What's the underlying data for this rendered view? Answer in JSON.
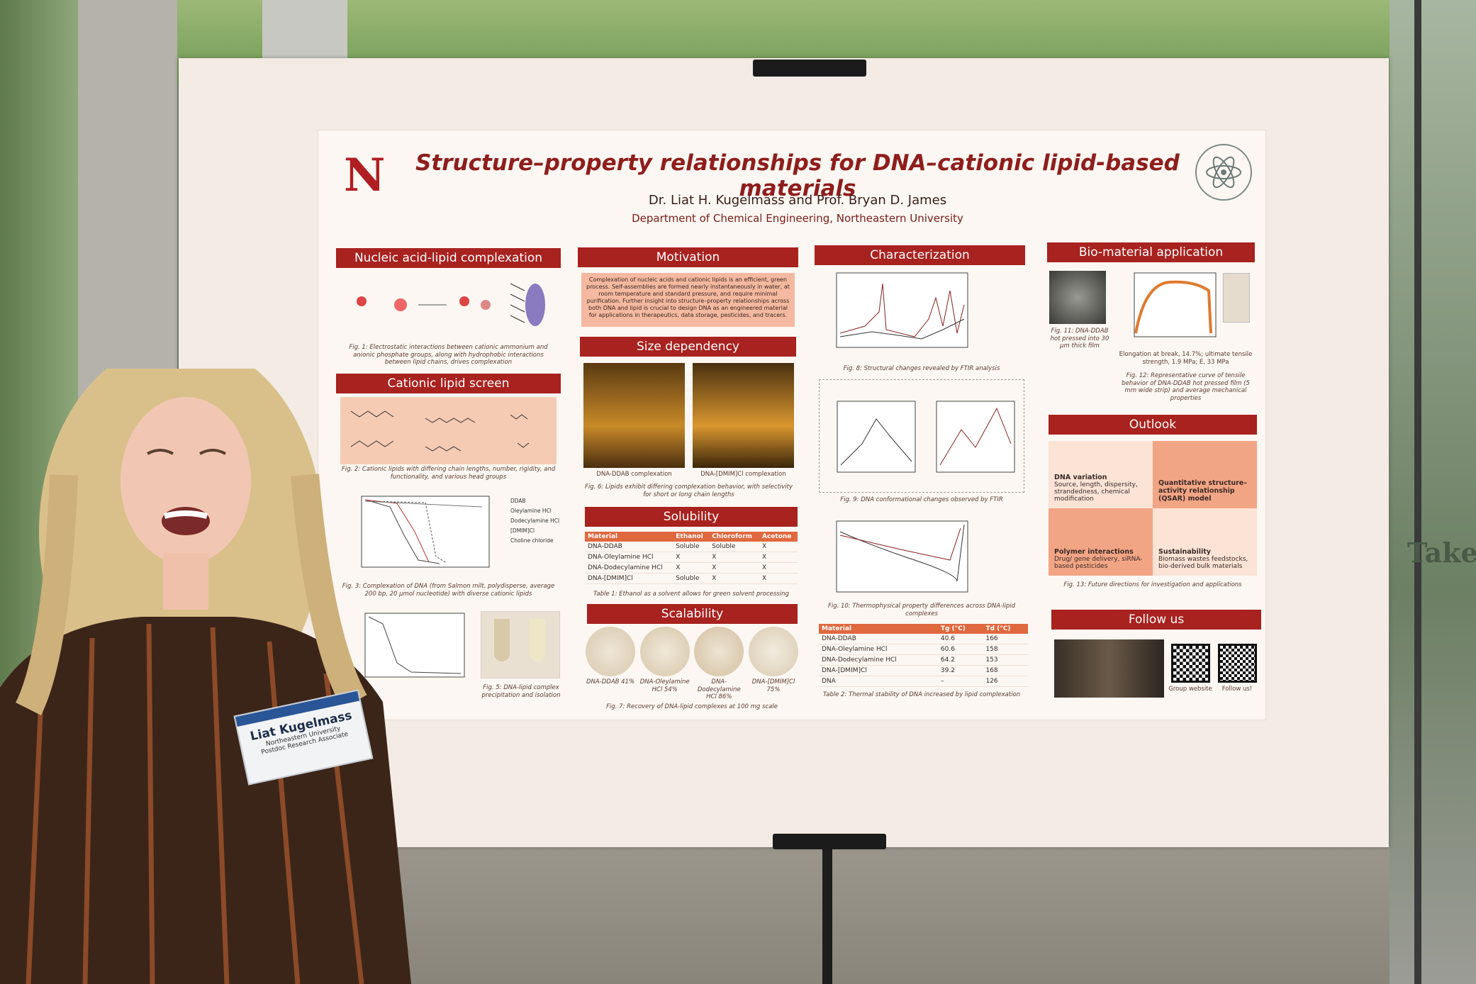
{
  "poster": {
    "logo": "N",
    "title": "Structure–property relationships for DNA–cationic lipid-based materials",
    "authors": "Dr. Liat H. Kugelmass and Prof. Bryan D. James",
    "affiliation": "Department of Chemical Engineering, Northeastern University",
    "complexation": {
      "heading": "Nucleic acid-lipid complexation",
      "caption": "Fig. 1: Electrostatic interactions between cationic ammonium and anionic phosphate groups, along with hydrophobic interactions between lipid chains, drives complexation"
    },
    "screen": {
      "heading": "Cationic lipid screen",
      "fig2_caption": "Fig. 2: Cationic lipids with differing chain lengths, number, rigidity, and functionality, and various head groups",
      "legend": [
        "DDAB",
        "Oleylamine HCl",
        "Dodecylamine HCl",
        "[DMIM]Cl",
        "Choline chloride"
      ],
      "fig3_caption": "Fig. 3: Complexation of DNA (from Salmon milt, polydisperse, average 200 bp, 20 μmol nucleotide) with diverse cationic lipids",
      "fig5_caption": "Fig. 5: DNA-lipid complex precipitation and isolation"
    },
    "motivation": {
      "heading": "Motivation",
      "text": "Complexation of nucleic acids and cationic lipids is an efficient, green process. Self-assemblies are formed nearly instantaneously in water, at room temperature and standard pressure, and require minimal purification. Further insight into structure–property relationships across both DNA and lipid is crucial to design DNA as an engineered material for applications in therapeutics, data storage, pesticides, and tracers."
    },
    "size": {
      "heading": "Size dependency",
      "gels": [
        "DNA-DDAB complexation",
        "DNA-[DMIM]Cl complexation"
      ],
      "caption": "Fig. 6: Lipids exhibit differing complexation behavior, with selectivity for short or long chain lengths"
    },
    "solubility": {
      "heading": "Solubility",
      "columns": [
        "Material",
        "Ethanol",
        "Chloroform",
        "Acetone"
      ],
      "rows": [
        [
          "DNA-DDAB",
          "Soluble",
          "Soluble",
          "X"
        ],
        [
          "DNA-Oleylamine HCl",
          "X",
          "X",
          "X"
        ],
        [
          "DNA-Dodecylamine HCl",
          "X",
          "X",
          "X"
        ],
        [
          "DNA-[DMIM]Cl",
          "Soluble",
          "X",
          "X"
        ]
      ],
      "caption": "Table 1: Ethanol as a solvent allows for green solvent processing"
    },
    "scalability": {
      "heading": "Scalability",
      "samples": [
        "DNA-DDAB 41%",
        "DNA-Oleylamine HCl 54%",
        "DNA-Dodecylamine HCl 86%",
        "DNA-[DMIM]Cl 75%"
      ],
      "caption": "Fig. 7: Recovery of DNA-lipid complexes at 100 mg scale"
    },
    "characterization": {
      "heading": "Characterization",
      "fig8_caption": "Fig. 8: Structural changes revealed by FTIR analysis",
      "fig9_caption": "Fig. 9: DNA conformational changes observed by FTIR",
      "fig10_caption": "Fig. 10: Thermophysical property differences across DNA-lipid complexes",
      "columns": [
        "Material",
        "Tg (°C)",
        "Td (°C)"
      ],
      "rows": [
        [
          "DNA-DDAB",
          "40.6",
          "166"
        ],
        [
          "DNA-Oleylamine HCl",
          "60.6",
          "158"
        ],
        [
          "DNA-Dodecylamine HCl",
          "64.2",
          "153"
        ],
        [
          "DNA-[DMIM]Cl",
          "39.2",
          "168"
        ],
        [
          "DNA",
          "–",
          "126"
        ]
      ],
      "table_caption": "Table 2: Thermal stability of DNA increased by lipid complexation"
    },
    "biomaterial": {
      "heading": "Bio-material application",
      "fig11_caption": "Fig. 11: DNA-DDAB hot pressed into 30 μm thick film",
      "properties": "Elongation at break, 14.7%; ultimate tensile strength, 1.9 MPa; E, 33 MPa",
      "fig12_caption": "Fig. 12: Representative curve of tensile behavior of DNA-DDAB hot pressed film (5 mm wide strip) and average mechanical properties"
    },
    "outlook": {
      "heading": "Outlook",
      "items": [
        {
          "title": "DNA variation",
          "text": "Source, length, dispersity, strandedness, chemical modification"
        },
        {
          "title": "Quantitative structure–activity relationship (QSAR) model",
          "text": ""
        },
        {
          "title": "Polymer interactions",
          "text": "Drug/ gene delivery, siRNA-based pesticides"
        },
        {
          "title": "Sustainability",
          "text": "Biomass wastes feedstocks, bio-derived bulk materials"
        }
      ],
      "caption": "Fig. 13: Future directions for investigation and applications"
    },
    "follow": {
      "heading": "Follow us",
      "links": [
        "Group website",
        "Follow us!"
      ]
    }
  },
  "badge": {
    "name": "Liat Kugelmass",
    "institution": "Northeastern University",
    "role": "Postdoc Research Associate"
  },
  "sign": "Takeda"
}
